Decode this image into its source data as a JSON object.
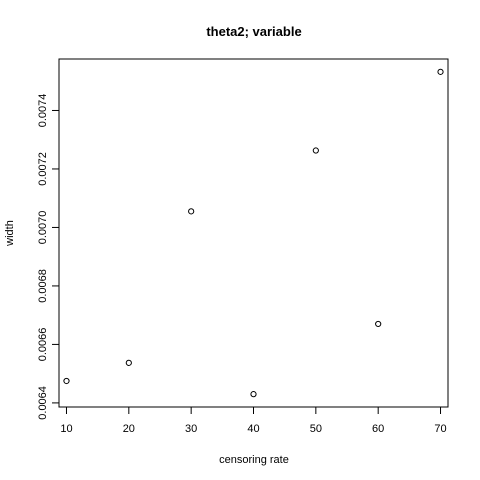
{
  "chart_data": {
    "type": "scatter",
    "title": "theta2; variable",
    "xlabel": "censoring rate",
    "ylabel": "width",
    "x": [
      10,
      20,
      30,
      40,
      50,
      60,
      70
    ],
    "y": [
      0.006475,
      0.006537,
      0.007055,
      0.00643,
      0.007263,
      0.00667,
      0.007532
    ],
    "xlim": [
      8.8,
      71.2
    ],
    "ylim": [
      0.006386,
      0.007576
    ],
    "xticks": [
      10,
      20,
      30,
      40,
      50,
      60,
      70
    ],
    "xtick_labels": [
      "10",
      "20",
      "30",
      "40",
      "50",
      "60",
      "70"
    ],
    "yticks": [
      0.0064,
      0.0066,
      0.0068,
      0.007,
      0.0072,
      0.0074
    ],
    "ytick_labels": [
      "0.0064",
      "0.0066",
      "0.0068",
      "0.0070",
      "0.0072",
      "0.0074"
    ],
    "grid": false,
    "marker": "open-circle",
    "marker_color": "#000000"
  }
}
